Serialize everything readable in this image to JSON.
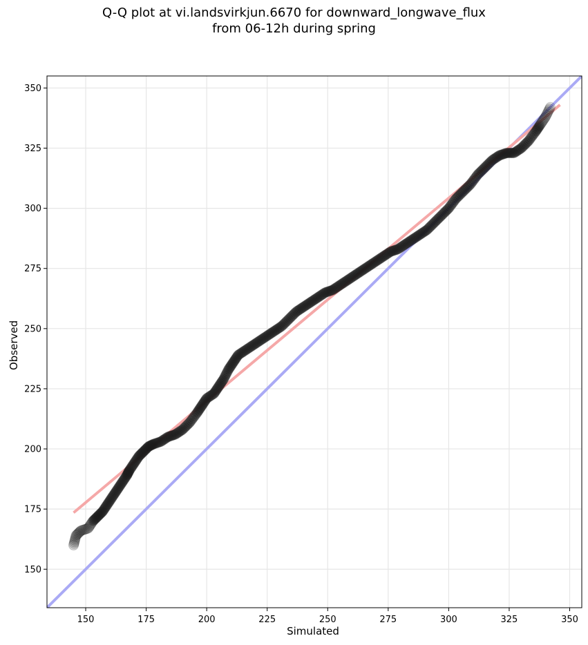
{
  "chart_data": {
    "type": "scatter",
    "title_line1": "Q-Q plot at vi.landsvirkjun.6670 for downward_longwave_flux",
    "title_line2": "from 06-12h during spring",
    "xlabel": "Simulated",
    "ylabel": "Observed",
    "xlim": [
      134,
      355
    ],
    "ylim": [
      134,
      355
    ],
    "xticks": [
      150,
      175,
      200,
      225,
      250,
      275,
      300,
      325,
      350
    ],
    "yticks": [
      150,
      175,
      200,
      225,
      250,
      275,
      300,
      325,
      350
    ],
    "grid": true,
    "colors": {
      "points": "#1a1a1a",
      "identity_line": "#aaaaf5",
      "fit_line": "#f5a8a8"
    },
    "identity_line": {
      "x": [
        134,
        355
      ],
      "y": [
        134,
        355
      ]
    },
    "fit_line": {
      "x": [
        145,
        346
      ],
      "y": [
        173.5,
        343
      ]
    },
    "quantiles": {
      "x": [
        145,
        146,
        148,
        151,
        153,
        155,
        157,
        159,
        161,
        163,
        165,
        167,
        168,
        170,
        172,
        174,
        176,
        178,
        181,
        184,
        187,
        190,
        193,
        196,
        198,
        200,
        203,
        205,
        207,
        209,
        211,
        213,
        216,
        219,
        222,
        225,
        228,
        231,
        234,
        237,
        240,
        243,
        246,
        249,
        252,
        255,
        258,
        261,
        264,
        267,
        270,
        273,
        276,
        279,
        282,
        285,
        288,
        291,
        294,
        297,
        300,
        303,
        306,
        309,
        312,
        315,
        318,
        321,
        324,
        327,
        330,
        333,
        336,
        338,
        340,
        342
      ],
      "y": [
        160,
        164,
        166,
        167,
        170,
        172,
        174,
        177,
        180,
        183,
        186,
        189,
        191,
        194,
        197,
        199,
        201,
        202,
        203,
        205,
        206,
        208,
        211,
        215,
        218,
        221,
        223,
        226,
        229,
        233,
        236,
        239,
        241,
        243,
        245,
        247,
        249,
        251,
        254,
        257,
        259,
        261,
        263,
        265,
        266,
        268,
        270,
        272,
        274,
        276,
        278,
        280,
        282,
        283,
        285,
        287,
        289,
        291,
        294,
        297,
        300,
        304,
        307,
        310,
        314,
        317,
        320,
        322,
        323,
        323,
        325,
        328,
        332,
        335,
        338,
        342
      ]
    }
  }
}
